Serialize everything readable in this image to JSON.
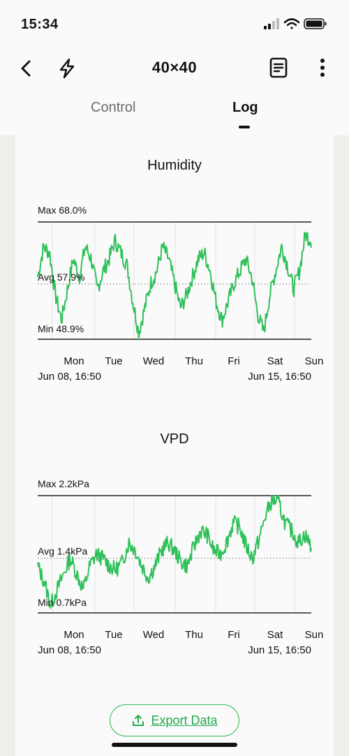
{
  "status_bar": {
    "time": "15:34"
  },
  "header": {
    "title": "40×40",
    "back_icon": "chevron-left-icon",
    "flash_icon": "lightning-icon",
    "notes_icon": "document-icon",
    "menu_icon": "more-vertical-icon"
  },
  "tabs": [
    {
      "label": "Control",
      "active": false
    },
    {
      "label": "Log",
      "active": true
    }
  ],
  "colors": {
    "accent": "#2fb957",
    "line": "#30c05a",
    "text": "#111111",
    "muted": "#6b6b6b"
  },
  "chart_data": [
    {
      "type": "line",
      "title": "Humidity",
      "max_label": "Max 68.0%",
      "avg_label": "Avg 57.9%",
      "min_label": "Min 48.9%",
      "max": 68.0,
      "avg": 57.9,
      "min": 48.9,
      "ylim": [
        48.9,
        68.0
      ],
      "day_labels": [
        "Mon",
        "Tue",
        "Wed",
        "Thu",
        "Fri",
        "Sat",
        "Sun"
      ],
      "start_label": "Jun 08, 16:50",
      "end_label": "Jun 15, 16:50",
      "series": [
        {
          "values": [
            59,
            64,
            63,
            56,
            52,
            57,
            62,
            59,
            64,
            62,
            57,
            60,
            62,
            65,
            63,
            61,
            55,
            50,
            54,
            58,
            60,
            64,
            62,
            58,
            54,
            56,
            59,
            62,
            63,
            60,
            55,
            52,
            55,
            58,
            60,
            62,
            59,
            53,
            50,
            56,
            60,
            64,
            61,
            57,
            60,
            66,
            65
          ]
        }
      ]
    },
    {
      "type": "line",
      "title": "VPD",
      "max_label": "Max 2.2kPa",
      "avg_label": "Avg 1.4kPa",
      "min_label": "Min 0.7kPa",
      "max": 2.2,
      "avg": 1.4,
      "min": 0.7,
      "ylim": [
        0.7,
        2.2
      ],
      "day_labels": [
        "Mon",
        "Tue",
        "Wed",
        "Thu",
        "Fri",
        "Sat",
        "Sun"
      ],
      "start_label": "Jun 08, 16:50",
      "end_label": "Jun 15, 16:50",
      "series": [
        {
          "values": [
            1.3,
            1.1,
            0.8,
            1.0,
            1.2,
            1.4,
            1.2,
            1.0,
            1.3,
            1.45,
            1.4,
            1.3,
            1.25,
            1.35,
            1.6,
            1.5,
            1.3,
            1.15,
            1.3,
            1.5,
            1.6,
            1.5,
            1.35,
            1.3,
            1.55,
            1.75,
            1.7,
            1.5,
            1.45,
            1.6,
            1.85,
            1.8,
            1.55,
            1.4,
            1.65,
            1.95,
            2.15,
            2.1,
            1.85,
            1.75,
            1.6,
            1.7,
            1.55
          ]
        }
      ]
    }
  ],
  "export": {
    "label": "Export Data",
    "icon": "upload-icon"
  }
}
